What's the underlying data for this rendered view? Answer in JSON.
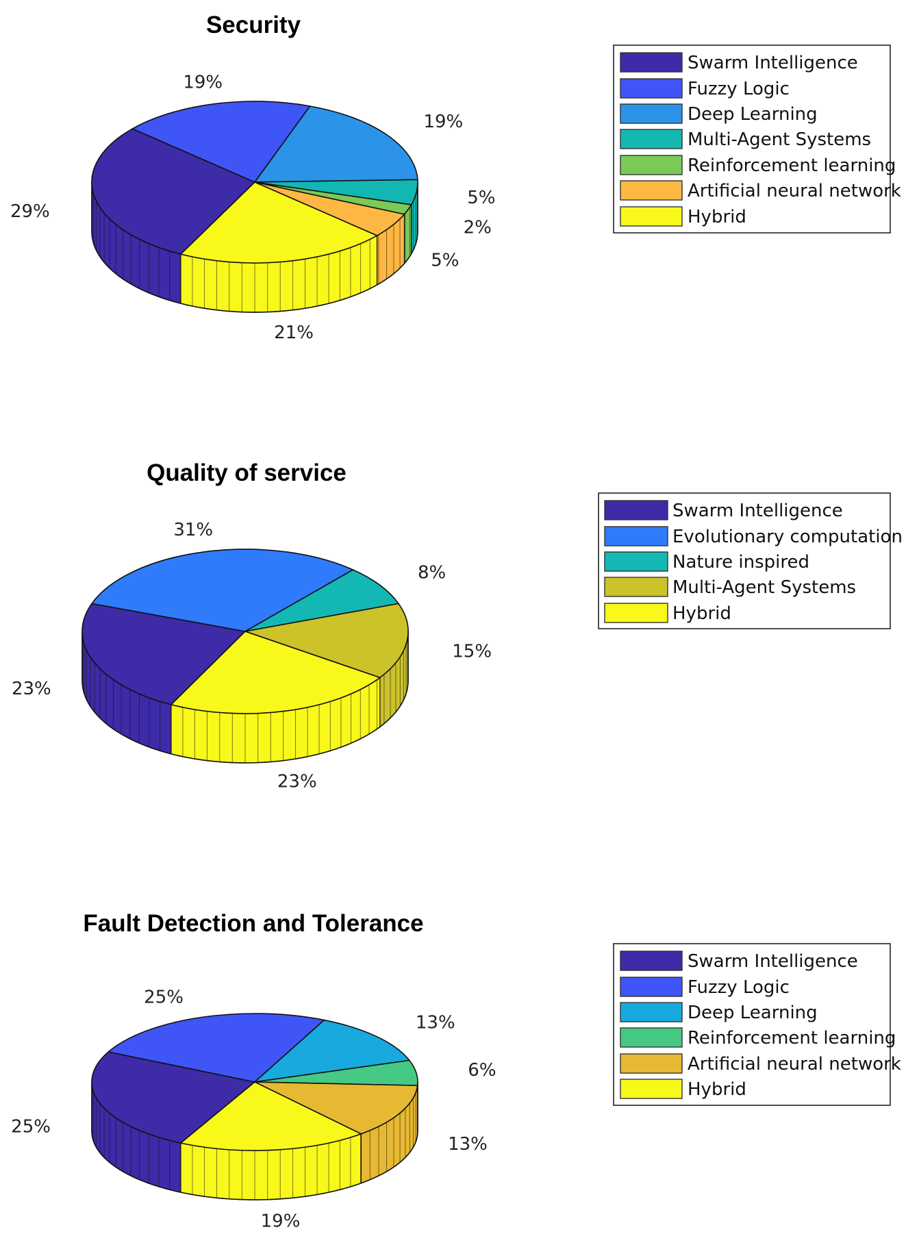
{
  "chart_data": [
    {
      "type": "pie",
      "style": "3d",
      "title": "Security",
      "slices": [
        {
          "label": "Swarm Intelligence",
          "value": 29,
          "pct_label": "29%",
          "color": "#3D2BA8"
        },
        {
          "label": "Fuzzy Logic",
          "value": 19,
          "pct_label": "19%",
          "color": "#4055F5"
        },
        {
          "label": "Deep Learning",
          "value": 19,
          "pct_label": "19%",
          "color": "#2B93E8"
        },
        {
          "label": "Multi-Agent Systems",
          "value": 5,
          "pct_label": "5%",
          "color": "#13B7B2"
        },
        {
          "label": "Reinforcement learning",
          "value": 2,
          "pct_label": "2%",
          "color": "#7BCA58"
        },
        {
          "label": "Artificial neural network",
          "value": 5,
          "pct_label": "5%",
          "color": "#FDB743"
        },
        {
          "label": "Hybrid",
          "value": 21,
          "pct_label": "21%",
          "color": "#F8F81A"
        }
      ],
      "legend_position": "right"
    },
    {
      "type": "pie",
      "style": "3d",
      "title": "Quality of service",
      "slices": [
        {
          "label": "Swarm Intelligence",
          "value": 23,
          "pct_label": "23%",
          "color": "#3D2BA8"
        },
        {
          "label": "Evolutionary computation",
          "value": 31,
          "pct_label": "31%",
          "color": "#2F7BFC"
        },
        {
          "label": "Nature inspired",
          "value": 8,
          "pct_label": "8%",
          "color": "#13B8B5"
        },
        {
          "label": "Multi-Agent Systems",
          "value": 15,
          "pct_label": "15%",
          "color": "#CCC22A"
        },
        {
          "label": "Hybrid",
          "value": 23,
          "pct_label": "23%",
          "color": "#F8F81A"
        }
      ],
      "legend_position": "right"
    },
    {
      "type": "pie",
      "style": "3d",
      "title": "Fault Detection and Tolerance",
      "slices": [
        {
          "label": "Swarm Intelligence",
          "value": 25,
          "pct_label": "25%",
          "color": "#3D2BA8"
        },
        {
          "label": "Fuzzy Logic",
          "value": 25,
          "pct_label": "25%",
          "color": "#4055F5"
        },
        {
          "label": "Deep Learning",
          "value": 13,
          "pct_label": "13%",
          "color": "#18AADE"
        },
        {
          "label": "Reinforcement learning",
          "value": 6,
          "pct_label": "6%",
          "color": "#46C984"
        },
        {
          "label": "Artificial neural network",
          "value": 13,
          "pct_label": "13%",
          "color": "#E7B832"
        },
        {
          "label": "Hybrid",
          "value": 19,
          "pct_label": "19%",
          "color": "#F8F81A"
        }
      ],
      "legend_position": "right"
    }
  ]
}
